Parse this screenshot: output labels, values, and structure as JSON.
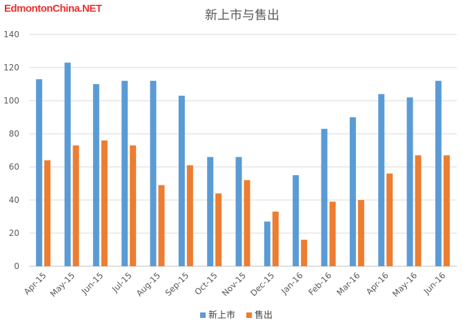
{
  "logo": {
    "text": "EdmontonChina.NET"
  },
  "chart_data": {
    "type": "bar",
    "title": "新上市与售出",
    "xlabel": "",
    "ylabel": "",
    "ylim": [
      0,
      140
    ],
    "yticks": [
      0,
      20,
      40,
      60,
      80,
      100,
      120,
      140
    ],
    "grid": true,
    "legend_position": "bottom",
    "categories": [
      "Apr-15",
      "May-15",
      "Jun-15",
      "Jul-15",
      "Aug-15",
      "Sep-15",
      "Oct-15",
      "Nov-15",
      "Dec-15",
      "Jan-16",
      "Feb-16",
      "Mar-16",
      "Apr-16",
      "May-16",
      "Jun-16"
    ],
    "series": [
      {
        "name": "新上市",
        "color": "#5b9bd5",
        "values": [
          113,
          123,
          110,
          112,
          112,
          103,
          66,
          66,
          27,
          55,
          83,
          90,
          104,
          102,
          112
        ]
      },
      {
        "name": "售出",
        "color": "#ed7d31",
        "values": [
          64,
          73,
          76,
          73,
          49,
          61,
          44,
          52,
          33,
          16,
          39,
          40,
          56,
          67,
          67
        ]
      }
    ]
  }
}
